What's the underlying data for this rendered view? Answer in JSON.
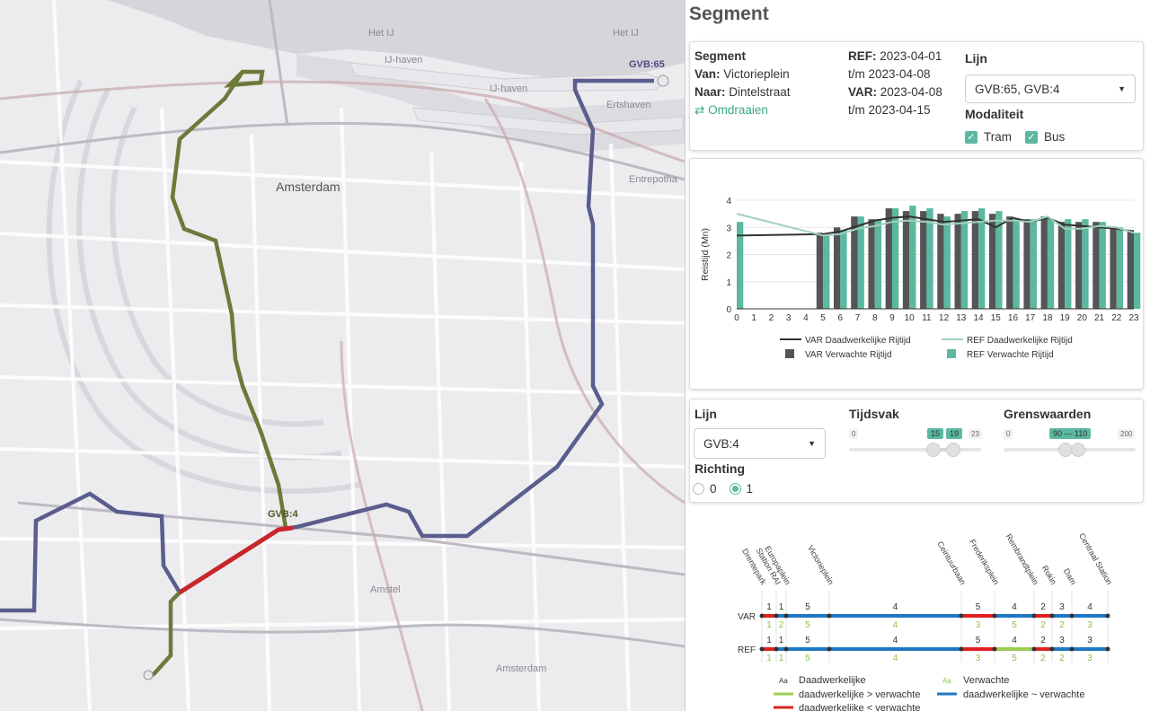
{
  "map": {
    "labels": {
      "het_ij_1": "Het IJ",
      "het_ij_2": "Het IJ",
      "ij_haven_1": "IJ-haven",
      "ij_haven_2": "IJ-haven",
      "ertshaven": "Ertshaven",
      "entrepot": "Entrepotha",
      "amsterdam": "Amsterdam",
      "amstel": "Amstel",
      "amsterdam_s": "Amsterdam"
    },
    "route_labels": {
      "gvb65": "GVB:65",
      "gvb4": "GVB:4"
    },
    "colors": {
      "gvb65": "#5a5d8e",
      "gvb4": "#6b7a3a",
      "segment": "#c8262b"
    }
  },
  "panel": {
    "title": "Segment",
    "info": {
      "segment_label": "Segment",
      "van_label": "Van:",
      "van_value": "Victorieplein",
      "naar_label": "Naar:",
      "naar_value": "Dintelstraat",
      "swap_label": "Omdraaien",
      "ref_label": "REF:",
      "ref_from": "2023-04-01",
      "ref_to": "t/m 2023-04-08",
      "var_label": "VAR:",
      "var_from": "2023-04-08",
      "var_to": "t/m 2023-04-15",
      "lijn_label": "Lijn",
      "lijn_value": "GVB:65, GVB:4",
      "modaliteit_label": "Modaliteit",
      "tram_label": "Tram",
      "bus_label": "Bus"
    },
    "controls": {
      "lijn_label": "Lijn",
      "lijn_value": "GVB:4",
      "richting_label": "Richting",
      "richting_options": [
        "0",
        "1"
      ],
      "richting_selected": "1",
      "tijdsvak_label": "Tijdsvak",
      "tijdsvak_min": "0",
      "tijdsvak_max": "23",
      "tijdsvak_low": "15",
      "tijdsvak_high": "19",
      "grens_label": "Grenswaarden",
      "grens_min": "0",
      "grens_max": "200",
      "grens_value": "90 — 110"
    },
    "legend": {
      "actual_aa": "Aa",
      "actual_label": "Daadwerkelijke",
      "expected_aa": "Aa",
      "expected_label": "Verwachte",
      "gt_label": "daadwerkelijke > verwachte",
      "approx_label": "daadwerkelijke ~ verwachte",
      "lt_label": "daadwerkelijke < verwachte"
    }
  },
  "chart_data": {
    "type": "bar",
    "ylabel": "Reistijd (Mn)",
    "ylim": [
      0,
      4
    ],
    "yticks": [
      "0",
      "1",
      "2",
      "3",
      "4"
    ],
    "categories": [
      "0",
      "1",
      "2",
      "3",
      "4",
      "5",
      "6",
      "7",
      "8",
      "9",
      "10",
      "11",
      "12",
      "13",
      "14",
      "15",
      "16",
      "17",
      "18",
      "19",
      "20",
      "21",
      "22",
      "23"
    ],
    "series": [
      {
        "name": "VAR Verwachte Rijtijd",
        "kind": "bar",
        "color": "#555555",
        "values": [
          null,
          null,
          null,
          null,
          null,
          2.8,
          3.0,
          3.4,
          3.3,
          3.7,
          3.6,
          3.6,
          3.5,
          3.5,
          3.6,
          3.5,
          3.4,
          3.3,
          3.4,
          3.2,
          3.2,
          3.2,
          3.0,
          2.9
        ]
      },
      {
        "name": "REF Verwachte Rijtijd",
        "kind": "bar",
        "color": "#5cb8a0",
        "values": [
          3.2,
          null,
          null,
          null,
          null,
          2.7,
          2.9,
          3.4,
          3.3,
          3.7,
          3.8,
          3.7,
          3.4,
          3.6,
          3.7,
          3.6,
          3.3,
          3.3,
          3.3,
          3.3,
          3.3,
          3.2,
          3.0,
          2.8
        ]
      },
      {
        "name": "VAR Daadwerkelijke Rijtijd",
        "kind": "line",
        "color": "#333333",
        "values": [
          2.7,
          null,
          null,
          null,
          null,
          2.75,
          2.85,
          3.05,
          3.25,
          3.35,
          3.4,
          3.3,
          3.2,
          3.25,
          3.3,
          3.0,
          3.35,
          3.2,
          3.35,
          3.1,
          3.05,
          3.0,
          2.95,
          2.85
        ]
      },
      {
        "name": "REF Daadwerkelijke Rijtijd",
        "kind": "line",
        "color": "#a0cfc0",
        "values": [
          3.5,
          null,
          null,
          null,
          null,
          2.7,
          2.75,
          2.95,
          3.05,
          3.2,
          3.25,
          3.2,
          3.1,
          3.15,
          3.2,
          3.25,
          3.25,
          3.2,
          3.4,
          2.95,
          2.95,
          3.05,
          3.0,
          2.8
        ]
      }
    ]
  },
  "strip": {
    "stops": [
      "Drentepark",
      "Station RAI",
      "Europaplein",
      "Victorieplein",
      "Ceintuurbaan",
      "Frederiksplein",
      "Rembrandtplein",
      "Rokin",
      "Dam",
      "Centraal Station"
    ],
    "row_labels": [
      "VAR",
      "REF"
    ],
    "var_actual": [
      "1",
      "1",
      "5",
      "4",
      "5",
      "4",
      "2",
      "3",
      "4"
    ],
    "var_expected": [
      "1",
      "2",
      "5",
      "4",
      "3",
      "5",
      "2",
      "2",
      "3"
    ],
    "ref_actual": [
      "1",
      "1",
      "5",
      "4",
      "5",
      "4",
      "2",
      "3",
      "3"
    ],
    "ref_expected": [
      "1",
      "1",
      "5",
      "4",
      "3",
      "5",
      "2",
      "2",
      "3"
    ],
    "var_status": [
      "lt",
      "approx",
      "approx",
      "approx",
      "lt",
      "approx",
      "lt",
      "approx",
      "approx"
    ],
    "ref_status": [
      "lt",
      "approx",
      "approx",
      "approx",
      "lt",
      "gt",
      "lt",
      "approx",
      "approx"
    ],
    "colors": {
      "gt": "#9ccc55",
      "approx": "#1f77c4",
      "lt": "#e02020"
    }
  }
}
